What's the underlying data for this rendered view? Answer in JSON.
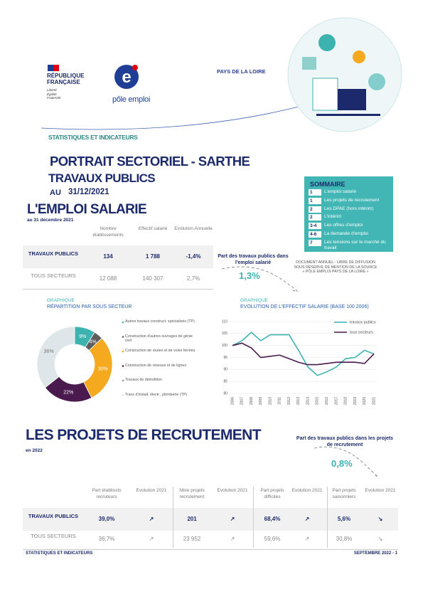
{
  "header": {
    "republic": [
      "RÉPUBLIQUE",
      "FRANÇAISE"
    ],
    "motto": [
      "Liberté",
      "Égalité",
      "Fraternité"
    ],
    "brand": "pôle emploi",
    "region": "PAYS DE LA LOIRE",
    "collection": "STATISTIQUES ET INDICATEURS"
  },
  "title": {
    "main": "PORTRAIT SECTORIEL - SARTHE",
    "sector": "TRAVAUX PUBLICS",
    "date_prefix": "AU",
    "date": "31/12/2021"
  },
  "summary": {
    "title": "SOMMAIRE",
    "items": [
      {
        "page": "1",
        "label": "L'emploi salarié"
      },
      {
        "page": "1",
        "label": "Les projets de recrutement"
      },
      {
        "page": "2",
        "label": "Les DPAE (hors intérim)"
      },
      {
        "page": "2",
        "label": "L'intérim"
      },
      {
        "page": "3-4",
        "label": "Les offres d'emploi"
      },
      {
        "page": "4-6",
        "label": "La demande d'emploi"
      },
      {
        "page": "7",
        "label": "Les tensions sur le marché du travail"
      }
    ]
  },
  "employment": {
    "title": "L'EMPLOI SALARIE",
    "subtitle": "au 31 décembre 2021",
    "table": {
      "columns": [
        "Nombre établissements",
        "Effectif salarié",
        "Evolution Annuelle"
      ],
      "rows": [
        {
          "label": "TRAVAUX PUBLICS",
          "cells": [
            "134",
            "1 788",
            "-1,4%"
          ]
        },
        {
          "label": "TOUS SECTEURS",
          "cells": [
            "12 088",
            "140 307",
            "2,7%"
          ]
        }
      ]
    },
    "share": {
      "label": "Part des travaux publics dans l'emploi salarié",
      "value": "1,3%"
    },
    "notice": "DOCUMENT ANNUEL - LIBRE DE DIFFUSION SOUS RÉSERVE DE MENTION DE LA SOURCE « PÔLE EMPLOI PAYS DE LA LOIRE »"
  },
  "chart_data": [
    {
      "type": "pie",
      "kicker": "GRAPHIQUE",
      "title": "RÉPARTITION PAR SOUS SECTEUR",
      "donut": true,
      "categories": [
        "Autres travaux construct. spécialisés (TP)",
        "Construction d'autres ouvrages de génie civil",
        "Construction de routes et de voies ferrées",
        "Construction de réseaux et de lignes",
        "Travaux de démolition",
        "Travx d'install. électr., plomberie (TP)"
      ],
      "values": [
        9,
        4,
        30,
        22,
        0,
        36
      ],
      "value_labels": [
        "9%",
        "4%",
        "30%",
        "22%",
        null,
        "36%"
      ],
      "colors": [
        "#3db3b0",
        "#5e5e5e",
        "#f5a91f",
        "#4a1a4f",
        "#9a9a9a",
        "#dfe6ea"
      ]
    },
    {
      "type": "line",
      "kicker": "GRAPHIQUE",
      "title": "EVOLUTION DE L'EFFECTIF SALARIE (BASE 100 2006)",
      "categories": [
        "2006",
        "2007",
        "2008",
        "2009",
        "2010",
        "2011",
        "2012",
        "2013",
        "2014",
        "2015",
        "2016",
        "2017",
        "2018",
        "2019",
        "2020",
        "2021"
      ],
      "series": [
        {
          "name": "travaux publics",
          "color": "#3db3b0",
          "values": [
            100,
            102,
            105.5,
            102,
            104.5,
            104.5,
            104.5,
            98,
            91,
            87.5,
            89,
            91,
            94.5,
            95,
            98,
            96.5
          ]
        },
        {
          "name": "tous secteurs",
          "color": "#4a1a4f",
          "values": [
            100,
            101,
            99,
            95,
            95.5,
            96,
            94.5,
            93,
            92,
            92,
            92.5,
            93,
            93,
            93,
            92.5,
            96.5
          ]
        }
      ],
      "ylim": [
        80,
        110
      ],
      "yticks": [
        80,
        85,
        90,
        95,
        100,
        105,
        110
      ],
      "grid": true
    }
  ],
  "recruitment": {
    "title": "LES PROJETS DE RECRUTEMENT",
    "subtitle": "en 2022",
    "share": {
      "label": "Part des travaux publics dans les projets de recrutement",
      "value": "0,8%"
    },
    "table": {
      "columns": [
        "Part établissts recruteurs",
        "Evolution 2021",
        "Nbre projets recrutement",
        "Evolution 2021",
        "Part projets difficiles",
        "Evolution 2021",
        "Part projets saisonniers",
        "Evolution 2021"
      ],
      "rows": [
        {
          "label": "TRAVAUX PUBLICS",
          "cells": [
            "39,0%",
            "↗",
            "201",
            "↗",
            "68,4%",
            "↗",
            "5,6%",
            "↘"
          ]
        },
        {
          "label": "TOUS SECTEURS",
          "cells": [
            "36,7%",
            "↗",
            "23 952",
            "↗",
            "59,6%",
            "↗",
            "30,8%",
            "↘"
          ]
        }
      ]
    }
  },
  "footer": {
    "left": "STATISTIQUES ET INDICATEURS",
    "right": "SEPTEMBRE 2022 - 1"
  }
}
